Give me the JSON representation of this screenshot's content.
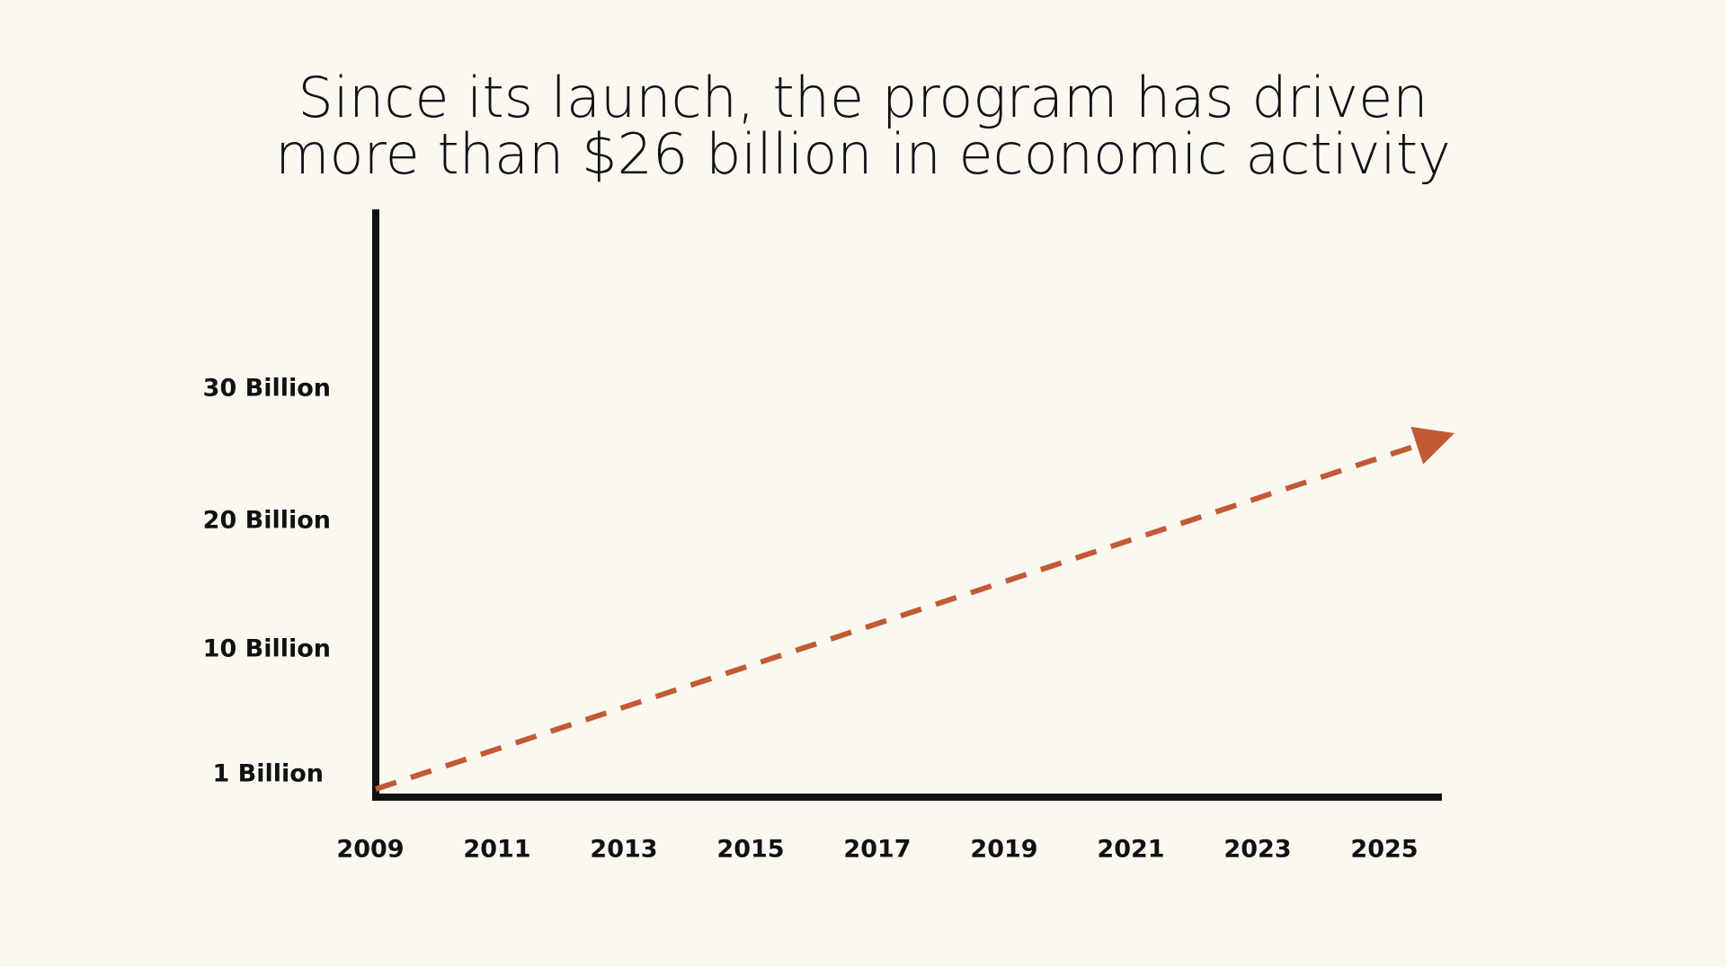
{
  "title_lines": [
    "Since its launch, the program has driven",
    "more than $26 billion in economic activity"
  ],
  "colors": {
    "background": "#faf8f0",
    "axis": "#111111",
    "series": "#c25a35",
    "text": "#111111"
  },
  "chart_data": {
    "type": "line",
    "title": "Since its launch, the program has driven more than $26 billion in economic activity",
    "xlabel": "",
    "ylabel": "",
    "x_ticks": [
      "2009",
      "2011",
      "2013",
      "2015",
      "2017",
      "2019",
      "2021",
      "2023",
      "2025"
    ],
    "y_ticks": [
      {
        "value": 1,
        "label": "1 Billion"
      },
      {
        "value": 10,
        "label": "10 Billion"
      },
      {
        "value": 20,
        "label": "20 Billion"
      },
      {
        "value": 30,
        "label": "30 Billion"
      }
    ],
    "series": [
      {
        "style": "dashed-arrow",
        "points": [
          {
            "x": 2009,
            "y": 1
          },
          {
            "x": 2025,
            "y": 26
          }
        ]
      }
    ],
    "grid": false,
    "legend": "none"
  }
}
